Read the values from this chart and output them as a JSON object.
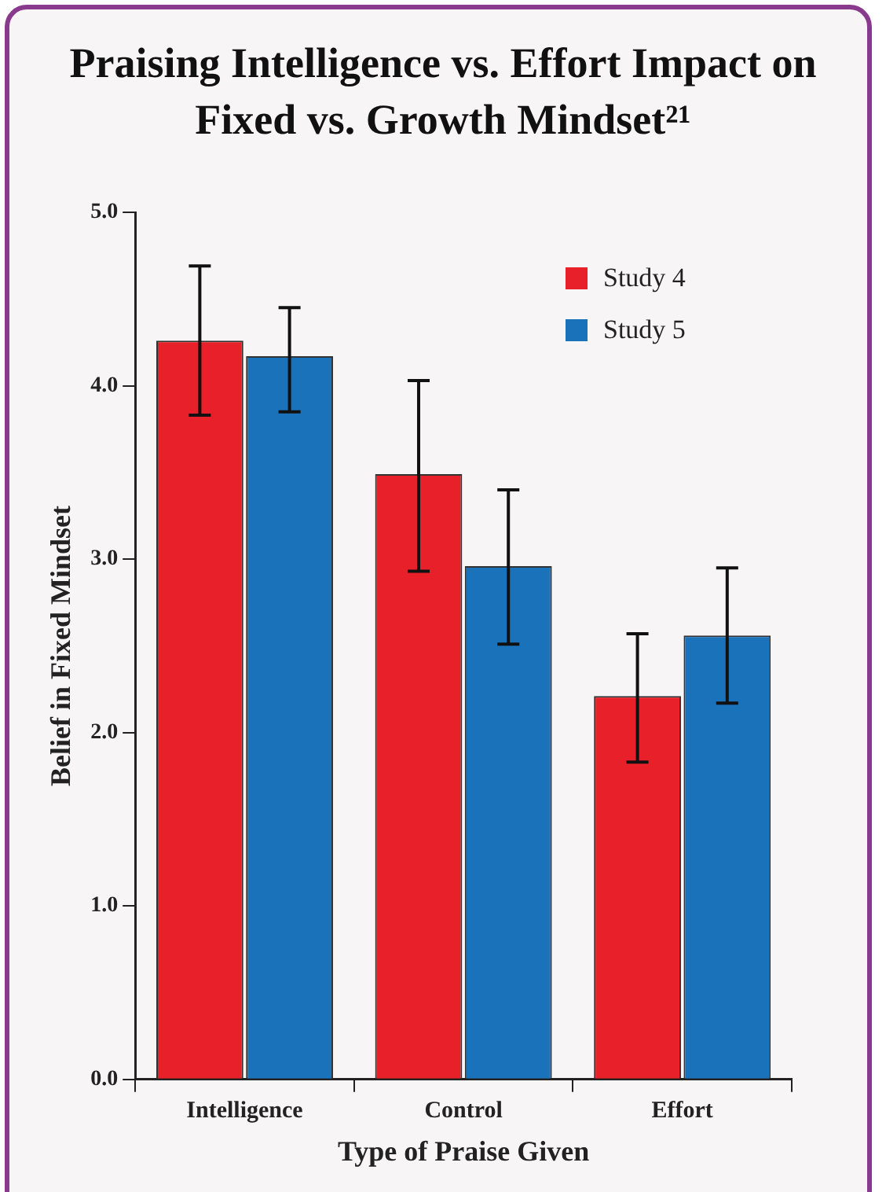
{
  "chart_data": {
    "type": "bar",
    "title": "Praising Intelligence vs. Effort Impact on Fixed vs. Growth Mindset²¹",
    "xlabel": "Type of Praise Given",
    "ylabel": "Belief in Fixed Mindset",
    "categories": [
      "Intelligence",
      "Control",
      "Effort"
    ],
    "series": [
      {
        "name": "Study 4",
        "color": "#e8202a",
        "values": [
          4.26,
          3.49,
          2.21
        ],
        "errors": [
          [
            3.83,
            4.69
          ],
          [
            2.93,
            4.03
          ],
          [
            1.83,
            2.57
          ]
        ]
      },
      {
        "name": "Study 5",
        "color": "#1a72bb",
        "values": [
          4.17,
          2.96,
          2.56
        ],
        "errors": [
          [
            3.85,
            4.45
          ],
          [
            2.51,
            3.4
          ],
          [
            2.17,
            2.95
          ]
        ]
      }
    ],
    "ylim": [
      0,
      5
    ],
    "yticks": [
      {
        "value": 0,
        "label": "0.0"
      },
      {
        "value": 1,
        "label": "1.0"
      },
      {
        "value": 2,
        "label": "2.0"
      },
      {
        "value": 3,
        "label": "3.0"
      },
      {
        "value": 4,
        "label": "4.0"
      },
      {
        "value": 5,
        "label": "5.0"
      }
    ],
    "grid": false,
    "legend": "top right"
  }
}
